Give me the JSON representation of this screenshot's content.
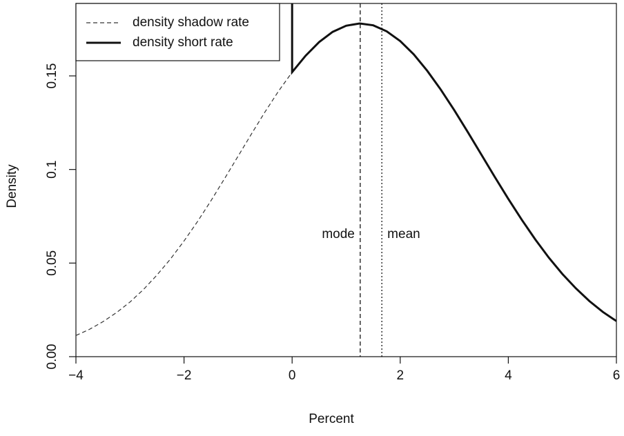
{
  "chart_data": {
    "type": "line",
    "xlabel": "Percent",
    "ylabel": "Density",
    "xlim": [
      -4,
      6
    ],
    "ylim": [
      0,
      0.1887
    ],
    "xticks": [
      {
        "value": -4,
        "label": "−4"
      },
      {
        "value": -2,
        "label": "−2"
      },
      0,
      2,
      4,
      6
    ],
    "yticks": [
      {
        "value": 0,
        "label": "0.00"
      },
      0.05,
      0.1,
      0.15
    ],
    "legend": "top-left",
    "series": [
      {
        "name": "density shadow rate",
        "color": "#333333",
        "style": "dashed",
        "x": [
          -4,
          -3.75,
          -3.5,
          -3.25,
          -3,
          -2.75,
          -2.5,
          -2.25,
          -2,
          -1.75,
          -1.5,
          -1.25,
          -1,
          -0.75,
          -0.5,
          -0.25,
          0
        ],
        "values": [
          0.0113,
          0.0146,
          0.0187,
          0.0235,
          0.0292,
          0.0359,
          0.0436,
          0.0522,
          0.0618,
          0.0722,
          0.0834,
          0.0951,
          0.1071,
          0.1191,
          0.1308,
          0.1419,
          0.152
        ]
      },
      {
        "name": "density short rate",
        "color": "#111111",
        "style": "solid",
        "x": [
          0,
          0,
          0.25,
          0.5,
          0.75,
          1,
          1.25,
          1.5,
          1.75,
          2,
          2.25,
          2.5,
          2.75,
          3,
          3.25,
          3.5,
          3.75,
          4,
          4.25,
          4.5,
          4.75,
          5,
          5.25,
          5.5,
          5.75,
          6
        ],
        "values": [
          0.1887,
          0.152,
          0.1608,
          0.1681,
          0.1735,
          0.1768,
          0.178,
          0.177,
          0.1738,
          0.1686,
          0.1615,
          0.1527,
          0.1427,
          0.1317,
          0.12,
          0.108,
          0.096,
          0.0843,
          0.0731,
          0.0626,
          0.0529,
          0.0442,
          0.0365,
          0.0297,
          0.0239,
          0.019
        ]
      }
    ],
    "vlines": [
      {
        "label": "mode",
        "x": 1.26,
        "style": "dashed"
      },
      {
        "label": "mean",
        "x": 1.66,
        "style": "dotted"
      }
    ]
  }
}
